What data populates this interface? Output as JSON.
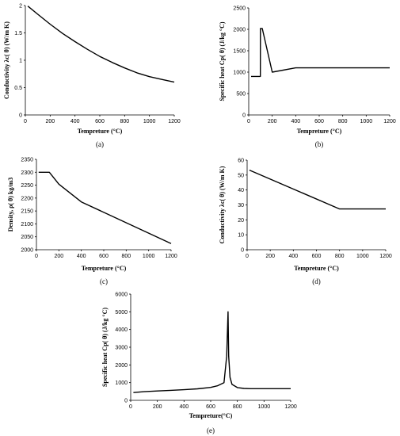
{
  "chart_data": [
    {
      "type": "line",
      "panel_label": "(a)",
      "xlabel": "Tempreture (°C)",
      "ylabel": "Conductivity λc( θ) (W/m K)",
      "xlim": [
        0,
        1200
      ],
      "ylim": [
        0,
        2
      ],
      "xticks": [
        "0",
        "200",
        "400",
        "600",
        "800",
        "1000",
        "1200"
      ],
      "yticks": [
        "0",
        "0.5",
        "1",
        "1.5",
        "2"
      ],
      "x": [
        20,
        100,
        200,
        300,
        400,
        500,
        600,
        700,
        800,
        900,
        1000,
        1100,
        1200
      ],
      "y": [
        1.99,
        1.84,
        1.66,
        1.49,
        1.34,
        1.2,
        1.07,
        0.96,
        0.86,
        0.77,
        0.7,
        0.65,
        0.6
      ]
    },
    {
      "type": "line",
      "panel_label": "(b)",
      "xlabel": "Tempreture (°C)",
      "ylabel": "Specific heat Cp( θ) (J/kg °C)",
      "xlim": [
        0,
        1200
      ],
      "ylim": [
        0,
        2500
      ],
      "xticks": [
        "0",
        "200",
        "400",
        "600",
        "800",
        "1000",
        "1200"
      ],
      "yticks": [
        "0",
        "500",
        "1000",
        "1500",
        "2000",
        "2500"
      ],
      "x": [
        20,
        99,
        100,
        115,
        200,
        400,
        1200
      ],
      "y": [
        900,
        900,
        2020,
        2020,
        1000,
        1100,
        1100
      ]
    },
    {
      "type": "line",
      "panel_label": "(c)",
      "xlabel": "Tempreture (°C)",
      "ylabel": "Density, ρ( θ) kg/m3",
      "xlim": [
        0,
        1200
      ],
      "ylim": [
        2000,
        2350
      ],
      "xticks": [
        "0",
        "200",
        "400",
        "600",
        "800",
        "1000",
        "1200"
      ],
      "yticks": [
        "2000",
        "2050",
        "2100",
        "2150",
        "2200",
        "2250",
        "2300",
        "2350"
      ],
      "x": [
        20,
        115,
        200,
        400,
        1200
      ],
      "y": [
        2300,
        2300,
        2254,
        2185,
        2024
      ]
    },
    {
      "type": "line",
      "panel_label": "(d)",
      "xlabel": "Tempreture (°C)",
      "ylabel": "Conductivity λc( θ) (W/m K)",
      "xlim": [
        0,
        1200
      ],
      "ylim": [
        0,
        60
      ],
      "xticks": [
        "0",
        "200",
        "400",
        "600",
        "800",
        "1000",
        "1200"
      ],
      "yticks": [
        "0",
        "10",
        "20",
        "30",
        "40",
        "50",
        "60"
      ],
      "x": [
        20,
        800,
        1200
      ],
      "y": [
        53.3,
        27.3,
        27.3
      ]
    },
    {
      "type": "line",
      "panel_label": "(e)",
      "xlabel": "Tempreture(°C)",
      "ylabel": "Specific heat Cp( θ) (J/kg °C)",
      "xlim": [
        0,
        1200
      ],
      "ylim": [
        0,
        6000
      ],
      "xticks": [
        "0",
        "200",
        "400",
        "600",
        "800",
        "1000",
        "1200"
      ],
      "yticks": [
        "0",
        "1000",
        "2000",
        "3000",
        "4000",
        "5000",
        "6000"
      ],
      "x": [
        20,
        100,
        200,
        300,
        400,
        500,
        600,
        650,
        700,
        720,
        730,
        735,
        745,
        760,
        800,
        850,
        900,
        1200
      ],
      "y": [
        440,
        488,
        530,
        565,
        600,
        650,
        730,
        820,
        1000,
        2500,
        5000,
        2500,
        1300,
        900,
        720,
        670,
        660,
        660
      ]
    }
  ]
}
